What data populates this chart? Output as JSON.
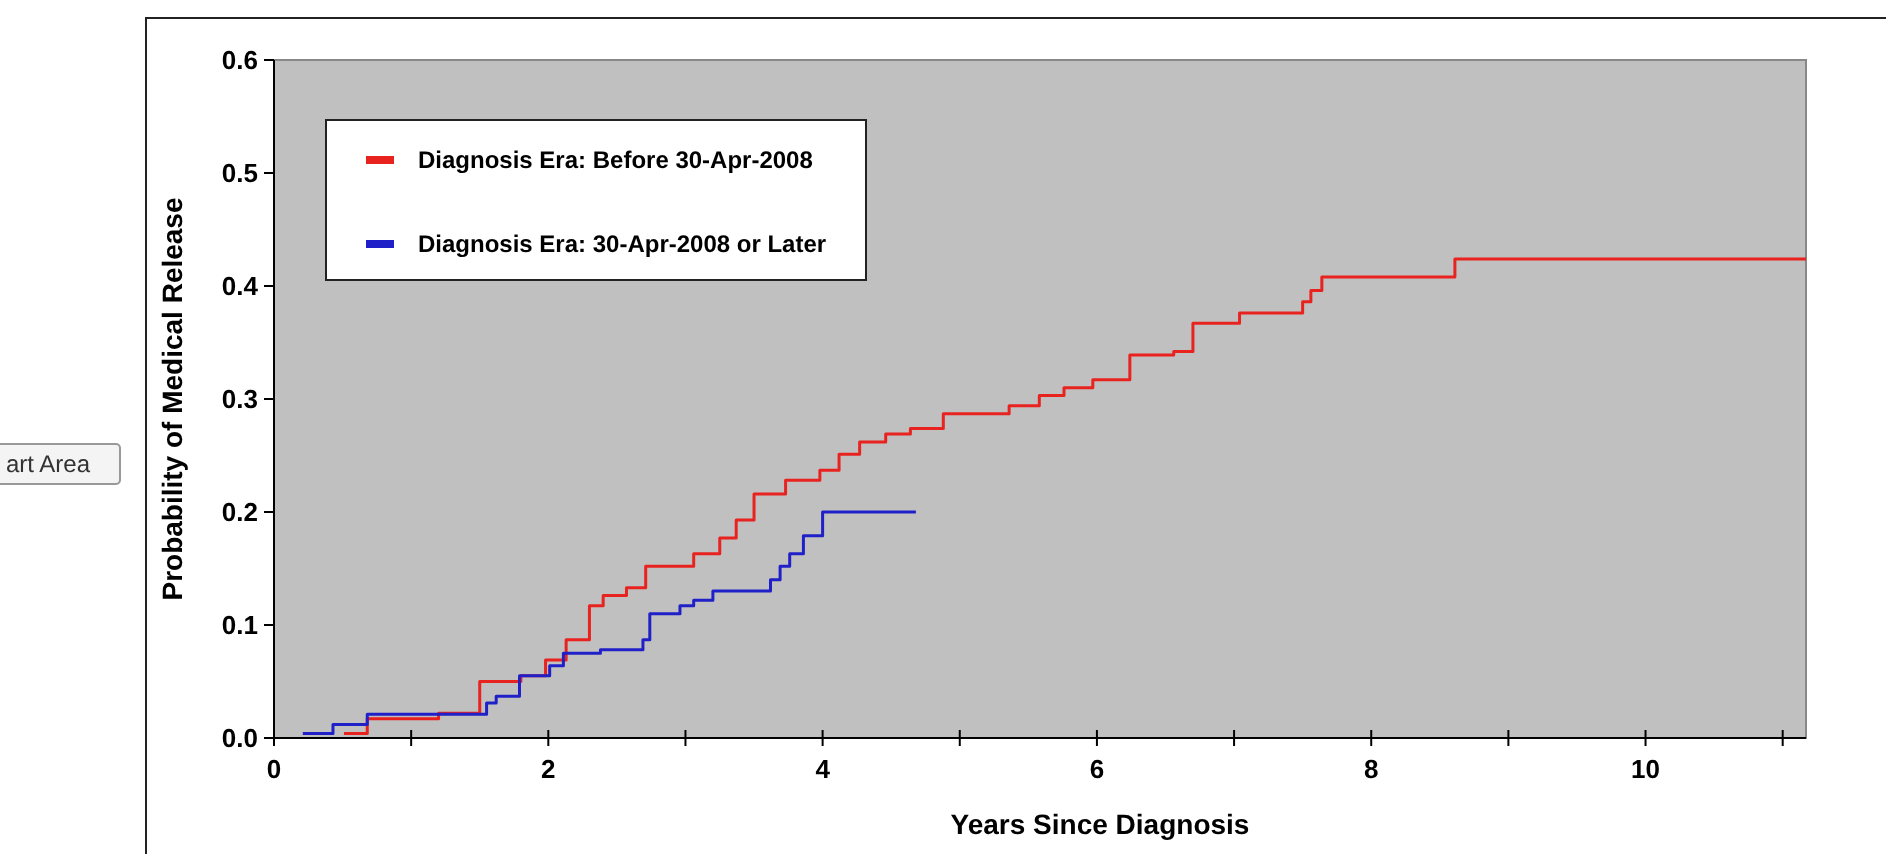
{
  "chart_data": {
    "type": "step",
    "xlabel": "Years Since Diagnosis",
    "ylabel": "Probability of Medical Release",
    "xlim": [
      0,
      11.17
    ],
    "xticks": [
      0,
      {
        "value": 1,
        "label": null
      },
      2,
      {
        "value": 3,
        "label": null
      },
      4,
      {
        "value": 5,
        "label": null
      },
      6,
      {
        "value": 7,
        "label": null
      },
      8,
      {
        "value": 9,
        "label": null
      },
      10,
      {
        "value": 11,
        "label": null
      }
    ],
    "ylim": [
      0,
      0.6
    ],
    "yticks": [
      {
        "value": 0,
        "label": "0.0"
      },
      0.1,
      0.2,
      0.3,
      0.4,
      0.5,
      0.6
    ],
    "grid": false,
    "legend": "top left",
    "line_style": "solid",
    "marker": "none",
    "annotations": [
      "art Area"
    ],
    "series": [
      {
        "name": "Diagnosis Era: Before 30-Apr-2008",
        "color": "#e8231f",
        "x": [
          0.51,
          0.68,
          1.2,
          1.5,
          1.8,
          1.98,
          2.13,
          2.3,
          2.4,
          2.57,
          2.71,
          3.06,
          3.25,
          3.37,
          3.5,
          3.73,
          3.98,
          4.12,
          4.27,
          4.46,
          4.64,
          4.88,
          5.36,
          5.58,
          5.76,
          5.97,
          6.24,
          6.56,
          6.7,
          7.04,
          7.5,
          7.56,
          7.64,
          8.61,
          11.17
        ],
        "values": [
          0.004,
          0.017,
          0.022,
          0.05,
          0.055,
          0.069,
          0.087,
          0.117,
          0.126,
          0.133,
          0.152,
          0.163,
          0.177,
          0.193,
          0.216,
          0.228,
          0.237,
          0.251,
          0.262,
          0.269,
          0.274,
          0.287,
          0.294,
          0.303,
          0.31,
          0.317,
          0.339,
          0.342,
          0.367,
          0.376,
          0.386,
          0.396,
          0.408,
          0.424,
          0.424
        ]
      },
      {
        "name": "Diagnosis Era: 30-Apr-2008 or Later",
        "color": "#2020c8",
        "x": [
          0.21,
          0.43,
          0.68,
          1.55,
          1.62,
          1.79,
          2.01,
          2.11,
          2.38,
          2.69,
          2.74,
          2.96,
          3.06,
          3.2,
          3.62,
          3.69,
          3.76,
          3.86,
          4.0,
          4.68
        ],
        "values": [
          0.004,
          0.012,
          0.021,
          0.031,
          0.037,
          0.055,
          0.064,
          0.075,
          0.078,
          0.087,
          0.11,
          0.117,
          0.122,
          0.13,
          0.14,
          0.152,
          0.163,
          0.179,
          0.2,
          0.2
        ]
      }
    ]
  }
}
